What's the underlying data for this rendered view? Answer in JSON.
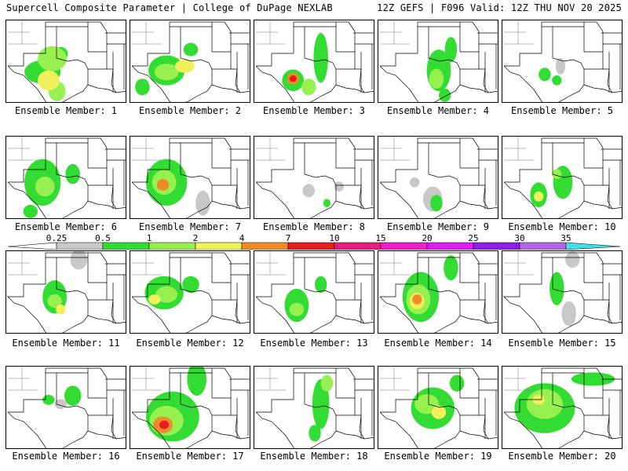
{
  "header": {
    "left_title": "Supercell Composite Parameter | College of DuPage NEXLAB",
    "right_title": "12Z GEFS | F096 Valid: 12Z THU NOV 20 2025"
  },
  "colorbar": {
    "ticks": [
      "0.25",
      "0.5",
      "1",
      "2",
      "4",
      "7",
      "10",
      "15",
      "20",
      "25",
      "30",
      "35"
    ],
    "colors": [
      "#c8c8c8",
      "#32dc32",
      "#96f050",
      "#f0f05a",
      "#f08c28",
      "#e61e1e",
      "#e61e78",
      "#f01ec8",
      "#dc1ef0",
      "#8c1ee6",
      "#b464e6",
      "#40e0e8"
    ]
  },
  "members": [
    {
      "label": "Ensemble Member: 1",
      "blobs": [
        [
          0.38,
          0.46,
          0.12,
          0.15,
          2
        ],
        [
          0.35,
          0.72,
          0.09,
          0.12,
          3
        ],
        [
          0.42,
          0.85,
          0.07,
          0.12,
          2
        ],
        [
          0.3,
          0.62,
          0.15,
          0.14,
          1
        ],
        [
          0.45,
          0.4,
          0.06,
          0.08,
          1
        ]
      ]
    },
    {
      "label": "Ensemble Member: 2",
      "blobs": [
        [
          0.3,
          0.6,
          0.15,
          0.18,
          1
        ],
        [
          0.3,
          0.62,
          0.1,
          0.1,
          2
        ],
        [
          0.45,
          0.55,
          0.08,
          0.08,
          3
        ],
        [
          0.5,
          0.35,
          0.06,
          0.08,
          1
        ],
        [
          0.1,
          0.8,
          0.06,
          0.1,
          1
        ]
      ]
    },
    {
      "label": "Ensemble Member: 3",
      "blobs": [
        [
          0.32,
          0.72,
          0.09,
          0.13,
          1
        ],
        [
          0.32,
          0.7,
          0.05,
          0.07,
          4
        ],
        [
          0.32,
          0.7,
          0.03,
          0.04,
          5
        ],
        [
          0.55,
          0.45,
          0.06,
          0.3,
          1
        ],
        [
          0.45,
          0.8,
          0.06,
          0.1,
          2
        ]
      ]
    },
    {
      "label": "Ensemble Member: 4",
      "blobs": [
        [
          0.5,
          0.6,
          0.1,
          0.25,
          1
        ],
        [
          0.48,
          0.7,
          0.06,
          0.12,
          2
        ],
        [
          0.6,
          0.35,
          0.05,
          0.15,
          1
        ],
        [
          0.55,
          0.9,
          0.05,
          0.08,
          1
        ]
      ]
    },
    {
      "label": "Ensemble Member: 5",
      "blobs": [
        [
          0.35,
          0.65,
          0.05,
          0.08,
          1
        ],
        [
          0.45,
          0.72,
          0.04,
          0.06,
          1
        ],
        [
          0.48,
          0.55,
          0.04,
          0.1,
          0
        ]
      ]
    },
    {
      "label": "Ensemble Member: 6",
      "blobs": [
        [
          0.3,
          0.55,
          0.15,
          0.28,
          1
        ],
        [
          0.32,
          0.6,
          0.08,
          0.12,
          2
        ],
        [
          0.55,
          0.45,
          0.06,
          0.12,
          1
        ],
        [
          0.2,
          0.9,
          0.06,
          0.08,
          1
        ]
      ]
    },
    {
      "label": "Ensemble Member: 7",
      "blobs": [
        [
          0.3,
          0.55,
          0.17,
          0.28,
          1
        ],
        [
          0.28,
          0.55,
          0.1,
          0.15,
          2
        ],
        [
          0.27,
          0.58,
          0.05,
          0.07,
          4
        ],
        [
          0.6,
          0.8,
          0.06,
          0.15,
          0
        ]
      ]
    },
    {
      "label": "Ensemble Member: 8",
      "blobs": [
        [
          0.45,
          0.65,
          0.05,
          0.08,
          0
        ],
        [
          0.6,
          0.8,
          0.03,
          0.05,
          1
        ],
        [
          0.7,
          0.6,
          0.04,
          0.06,
          0
        ]
      ]
    },
    {
      "label": "Ensemble Member: 9",
      "blobs": [
        [
          0.45,
          0.75,
          0.08,
          0.15,
          0
        ],
        [
          0.48,
          0.8,
          0.05,
          0.1,
          1
        ],
        [
          0.3,
          0.55,
          0.04,
          0.06,
          0
        ]
      ]
    },
    {
      "label": "Ensemble Member: 10",
      "blobs": [
        [
          0.3,
          0.7,
          0.07,
          0.15,
          1
        ],
        [
          0.3,
          0.72,
          0.04,
          0.06,
          3
        ],
        [
          0.5,
          0.55,
          0.08,
          0.2,
          1
        ],
        [
          0.45,
          0.45,
          0.04,
          0.06,
          2
        ]
      ]
    },
    {
      "label": "Ensemble Member: 11",
      "blobs": [
        [
          0.4,
          0.55,
          0.1,
          0.2,
          1
        ],
        [
          0.4,
          0.6,
          0.06,
          0.08,
          2
        ],
        [
          0.45,
          0.7,
          0.04,
          0.06,
          3
        ],
        [
          0.6,
          0.1,
          0.07,
          0.12,
          0
        ]
      ]
    },
    {
      "label": "Ensemble Member: 12",
      "blobs": [
        [
          0.28,
          0.5,
          0.16,
          0.2,
          1
        ],
        [
          0.3,
          0.52,
          0.09,
          0.1,
          2
        ],
        [
          0.2,
          0.58,
          0.05,
          0.06,
          3
        ],
        [
          0.5,
          0.4,
          0.07,
          0.1,
          1
        ]
      ]
    },
    {
      "label": "Ensemble Member: 13",
      "blobs": [
        [
          0.35,
          0.65,
          0.1,
          0.2,
          1
        ],
        [
          0.35,
          0.7,
          0.06,
          0.08,
          2
        ],
        [
          0.55,
          0.4,
          0.05,
          0.1,
          1
        ]
      ]
    },
    {
      "label": "Ensemble Member: 14",
      "blobs": [
        [
          0.35,
          0.55,
          0.15,
          0.3,
          1
        ],
        [
          0.33,
          0.58,
          0.1,
          0.18,
          2
        ],
        [
          0.32,
          0.6,
          0.06,
          0.1,
          3
        ],
        [
          0.32,
          0.58,
          0.04,
          0.06,
          4
        ],
        [
          0.6,
          0.2,
          0.06,
          0.15,
          1
        ]
      ]
    },
    {
      "label": "Ensemble Member: 15",
      "blobs": [
        [
          0.45,
          0.45,
          0.06,
          0.2,
          1
        ],
        [
          0.55,
          0.75,
          0.06,
          0.15,
          0
        ],
        [
          0.58,
          0.1,
          0.06,
          0.1,
          0
        ]
      ]
    },
    {
      "label": "Ensemble Member: 16",
      "blobs": [
        [
          0.55,
          0.35,
          0.07,
          0.12,
          1
        ],
        [
          0.45,
          0.45,
          0.05,
          0.06,
          0
        ],
        [
          0.35,
          0.4,
          0.05,
          0.06,
          1
        ]
      ]
    },
    {
      "label": "Ensemble Member: 17",
      "blobs": [
        [
          0.35,
          0.6,
          0.22,
          0.3,
          1
        ],
        [
          0.3,
          0.65,
          0.14,
          0.18,
          2
        ],
        [
          0.27,
          0.7,
          0.08,
          0.1,
          4
        ],
        [
          0.28,
          0.7,
          0.04,
          0.05,
          5
        ],
        [
          0.55,
          0.15,
          0.08,
          0.2,
          1
        ]
      ]
    },
    {
      "label": "Ensemble Member: 18",
      "blobs": [
        [
          0.55,
          0.45,
          0.07,
          0.3,
          1
        ],
        [
          0.6,
          0.2,
          0.05,
          0.1,
          2
        ],
        [
          0.5,
          0.8,
          0.05,
          0.1,
          1
        ]
      ]
    },
    {
      "label": "Ensemble Member: 19",
      "blobs": [
        [
          0.45,
          0.5,
          0.18,
          0.25,
          1
        ],
        [
          0.4,
          0.45,
          0.1,
          0.12,
          2
        ],
        [
          0.5,
          0.55,
          0.06,
          0.08,
          3
        ],
        [
          0.65,
          0.2,
          0.06,
          0.1,
          1
        ]
      ]
    },
    {
      "label": "Ensemble Member: 20",
      "blobs": [
        [
          0.35,
          0.5,
          0.25,
          0.3,
          1
        ],
        [
          0.35,
          0.45,
          0.15,
          0.18,
          2
        ],
        [
          0.3,
          0.4,
          0.05,
          0.06,
          3
        ],
        [
          0.75,
          0.15,
          0.18,
          0.08,
          1
        ]
      ]
    }
  ]
}
